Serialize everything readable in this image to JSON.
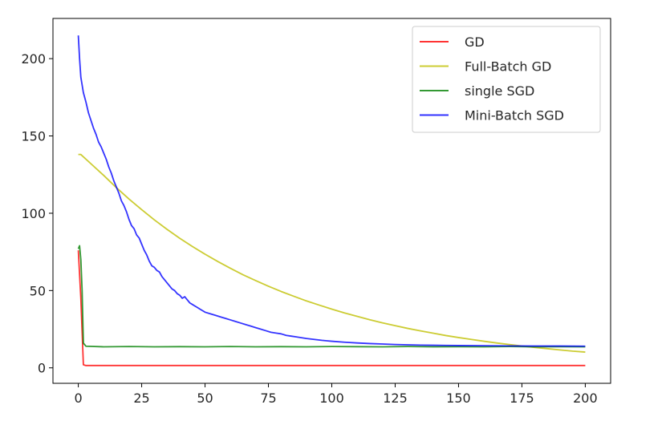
{
  "chart_data": {
    "type": "line",
    "title": "",
    "xlabel": "",
    "ylabel": "",
    "xlim": [
      -10,
      210
    ],
    "ylim": [
      -10,
      226
    ],
    "grid": false,
    "legend_position": "top-right",
    "x_ticks": [
      0,
      25,
      50,
      75,
      100,
      125,
      150,
      175,
      200
    ],
    "y_ticks": [
      0,
      50,
      100,
      150,
      200
    ],
    "series": [
      {
        "name": "GD",
        "color": "#ff0000",
        "points": [
          [
            0,
            76
          ],
          [
            1,
            45
          ],
          [
            2,
            2
          ],
          [
            3,
            1.5
          ],
          [
            10,
            1.5
          ],
          [
            50,
            1.5
          ],
          [
            100,
            1.5
          ],
          [
            150,
            1.5
          ],
          [
            200,
            1.5
          ]
        ]
      },
      {
        "name": "Full-Batch GD",
        "color": "#bfbf00",
        "points": [
          [
            0,
            138
          ],
          [
            1,
            138
          ],
          [
            5,
            132
          ],
          [
            10,
            124.5
          ],
          [
            15,
            116.6
          ],
          [
            20,
            109.2
          ],
          [
            25,
            102.3
          ],
          [
            30,
            95.7
          ],
          [
            35,
            89.6
          ],
          [
            40,
            83.8
          ],
          [
            45,
            78.5
          ],
          [
            50,
            73.5
          ],
          [
            55,
            68.8
          ],
          [
            60,
            64.4
          ],
          [
            65,
            60.2
          ],
          [
            70,
            56.4
          ],
          [
            75,
            52.8
          ],
          [
            80,
            49.4
          ],
          [
            85,
            46.3
          ],
          [
            90,
            43.3
          ],
          [
            95,
            40.6
          ],
          [
            100,
            38
          ],
          [
            105,
            35.5
          ],
          [
            110,
            33.3
          ],
          [
            115,
            31.1
          ],
          [
            120,
            29.1
          ],
          [
            125,
            27.3
          ],
          [
            130,
            25.5
          ],
          [
            135,
            23.9
          ],
          [
            140,
            22.4
          ],
          [
            145,
            20.9
          ],
          [
            150,
            19.6
          ],
          [
            155,
            18.4
          ],
          [
            160,
            17.2
          ],
          [
            165,
            16.1
          ],
          [
            170,
            15.1
          ],
          [
            175,
            14.1
          ],
          [
            180,
            13.2
          ],
          [
            185,
            12.4
          ],
          [
            190,
            11.6
          ],
          [
            195,
            10.8
          ],
          [
            200,
            10.2
          ]
        ]
      },
      {
        "name": "single SGD",
        "color": "#008000",
        "points": [
          [
            0,
            77
          ],
          [
            0.5,
            79
          ],
          [
            1,
            70
          ],
          [
            1.5,
            50
          ],
          [
            2,
            16
          ],
          [
            3,
            14
          ],
          [
            10,
            13.6
          ],
          [
            20,
            13.8
          ],
          [
            30,
            13.6
          ],
          [
            40,
            13.7
          ],
          [
            50,
            13.6
          ],
          [
            60,
            13.8
          ],
          [
            70,
            13.6
          ],
          [
            80,
            13.7
          ],
          [
            90,
            13.6
          ],
          [
            100,
            13.8
          ],
          [
            110,
            13.7
          ],
          [
            120,
            13.6
          ],
          [
            130,
            13.8
          ],
          [
            140,
            13.6
          ],
          [
            150,
            13.7
          ],
          [
            160,
            13.6
          ],
          [
            170,
            13.8
          ],
          [
            180,
            13.6
          ],
          [
            190,
            13.7
          ],
          [
            200,
            13.6
          ]
        ]
      },
      {
        "name": "Mini-Batch SGD",
        "color": "#0000ff",
        "points": [
          [
            0,
            215
          ],
          [
            0.5,
            200
          ],
          [
            1,
            188
          ],
          [
            2,
            178
          ],
          [
            3,
            172
          ],
          [
            4,
            165
          ],
          [
            5,
            160
          ],
          [
            6,
            155
          ],
          [
            7,
            151
          ],
          [
            8,
            146
          ],
          [
            9,
            143
          ],
          [
            10,
            139
          ],
          [
            11,
            135
          ],
          [
            12,
            130
          ],
          [
            13,
            126
          ],
          [
            14,
            121
          ],
          [
            15,
            117
          ],
          [
            16,
            113
          ],
          [
            17,
            108
          ],
          [
            18,
            105
          ],
          [
            19,
            101
          ],
          [
            20,
            96
          ],
          [
            21,
            92
          ],
          [
            22,
            90
          ],
          [
            23,
            86
          ],
          [
            24,
            84
          ],
          [
            25,
            80
          ],
          [
            26,
            76
          ],
          [
            27,
            73
          ],
          [
            28,
            69
          ],
          [
            29,
            66
          ],
          [
            30,
            65
          ],
          [
            31,
            63
          ],
          [
            32,
            62
          ],
          [
            33,
            59
          ],
          [
            34,
            57
          ],
          [
            35,
            55
          ],
          [
            36,
            53
          ],
          [
            37,
            51
          ],
          [
            38,
            50
          ],
          [
            39,
            48
          ],
          [
            40,
            47
          ],
          [
            41,
            45
          ],
          [
            42,
            46
          ],
          [
            43,
            44
          ],
          [
            44,
            42
          ],
          [
            45,
            41
          ],
          [
            46,
            40
          ],
          [
            47,
            39
          ],
          [
            48,
            38
          ],
          [
            49,
            37
          ],
          [
            50,
            36
          ],
          [
            52,
            35
          ],
          [
            54,
            34
          ],
          [
            56,
            33
          ],
          [
            58,
            32
          ],
          [
            60,
            31
          ],
          [
            62,
            30
          ],
          [
            64,
            29
          ],
          [
            66,
            28
          ],
          [
            68,
            27
          ],
          [
            70,
            26
          ],
          [
            72,
            25
          ],
          [
            74,
            24
          ],
          [
            76,
            23
          ],
          [
            78,
            22.5
          ],
          [
            80,
            22
          ],
          [
            82,
            21
          ],
          [
            84,
            20.5
          ],
          [
            86,
            20
          ],
          [
            88,
            19.5
          ],
          [
            90,
            19
          ],
          [
            92,
            18.6
          ],
          [
            94,
            18.2
          ],
          [
            96,
            17.8
          ],
          [
            98,
            17.5
          ],
          [
            100,
            17.2
          ],
          [
            105,
            16.6
          ],
          [
            110,
            16.1
          ],
          [
            115,
            15.7
          ],
          [
            120,
            15.4
          ],
          [
            125,
            15.1
          ],
          [
            130,
            14.9
          ],
          [
            135,
            14.7
          ],
          [
            140,
            14.6
          ],
          [
            145,
            14.5
          ],
          [
            150,
            14.4
          ],
          [
            160,
            14.3
          ],
          [
            170,
            14.2
          ],
          [
            180,
            14.1
          ],
          [
            190,
            14.1
          ],
          [
            200,
            14.0
          ]
        ]
      }
    ]
  }
}
